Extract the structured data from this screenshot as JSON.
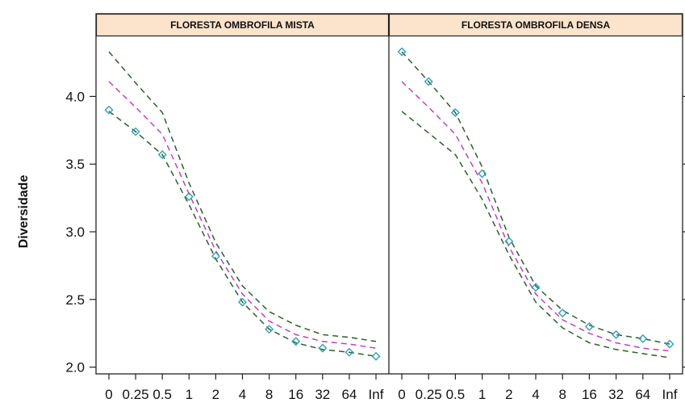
{
  "chart_data": {
    "type": "line",
    "ylabel": "Diversidade",
    "xlabel": "",
    "x_tick_labels": [
      "0",
      "0.25",
      "0.5",
      "1",
      "2",
      "4",
      "8",
      "16",
      "32",
      "64",
      "Inf"
    ],
    "y_ticks": [
      2.0,
      2.5,
      3.0,
      3.5,
      4.0
    ],
    "y_tick_labels": [
      "2.0",
      "2.5",
      "3.0",
      "3.5",
      "4.0"
    ],
    "ylim": [
      1.95,
      4.45
    ],
    "grid": false,
    "colors": {
      "strip_fill": "#fbe3cc",
      "estimate": "#c040c0",
      "ci": "#2e5e2e",
      "observed": "#2fa0b8"
    },
    "panels": [
      {
        "title": "FLORESTA OMBROFILA MISTA",
        "observed": [
          3.9,
          3.74,
          3.57,
          3.26,
          2.82,
          2.48,
          2.28,
          2.19,
          2.14,
          2.11,
          2.08
        ],
        "estimate": [
          4.11,
          3.92,
          3.72,
          3.28,
          2.86,
          2.54,
          2.34,
          2.24,
          2.19,
          2.17,
          2.14
        ],
        "upper": [
          4.33,
          4.1,
          3.88,
          3.36,
          2.92,
          2.6,
          2.41,
          2.31,
          2.24,
          2.22,
          2.19
        ],
        "lower": [
          3.89,
          3.74,
          3.57,
          3.2,
          2.8,
          2.48,
          2.28,
          2.18,
          2.13,
          2.11,
          2.08
        ]
      },
      {
        "title": "FLORESTA OMBROFILA DENSA",
        "observed": [
          4.33,
          4.11,
          3.88,
          3.43,
          2.93,
          2.59,
          2.4,
          2.3,
          2.24,
          2.21,
          2.17
        ],
        "estimate": [
          4.11,
          3.92,
          3.72,
          3.36,
          2.89,
          2.54,
          2.35,
          2.25,
          2.18,
          2.14,
          2.12
        ],
        "upper": [
          4.33,
          4.11,
          3.88,
          3.48,
          2.96,
          2.6,
          2.42,
          2.31,
          2.24,
          2.21,
          2.17
        ],
        "lower": [
          3.89,
          3.73,
          3.57,
          3.24,
          2.83,
          2.48,
          2.29,
          2.18,
          2.13,
          2.1,
          2.07
        ]
      }
    ]
  }
}
